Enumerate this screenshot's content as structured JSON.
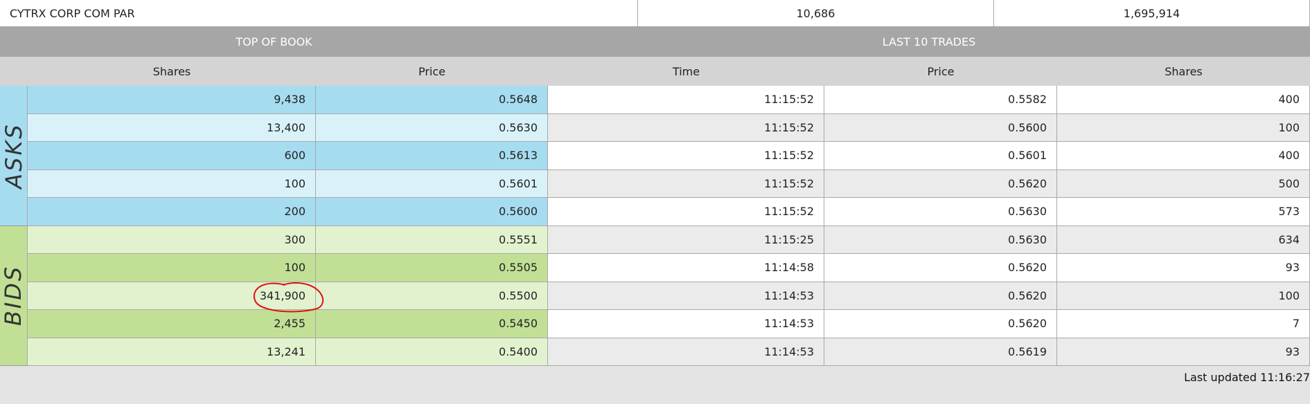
{
  "summary": [
    "CYTRX CORP COM PAR",
    "10,686",
    "1,695,914"
  ],
  "sections": [
    "TOP OF BOOK",
    "LAST 10 TRADES"
  ],
  "columns": [
    "Shares",
    "Price",
    "Time",
    "Price",
    "Shares"
  ],
  "side_labels": [
    "ASKS",
    "BIDS"
  ],
  "book": [
    [
      "9,438",
      "0.5648"
    ],
    [
      "13,400",
      "0.5630"
    ],
    [
      "600",
      "0.5613"
    ],
    [
      "100",
      "0.5601"
    ],
    [
      "200",
      "0.5600"
    ],
    [
      "300",
      "0.5551"
    ],
    [
      "100",
      "0.5505"
    ],
    [
      "341,900",
      "0.5500"
    ],
    [
      "2,455",
      "0.5450"
    ],
    [
      "13,241",
      "0.5400"
    ]
  ],
  "trades": [
    [
      "11:15:52",
      "0.5582",
      "400"
    ],
    [
      "11:15:52",
      "0.5600",
      "100"
    ],
    [
      "11:15:52",
      "0.5601",
      "400"
    ],
    [
      "11:15:52",
      "0.5620",
      "500"
    ],
    [
      "11:15:52",
      "0.5630",
      "573"
    ],
    [
      "11:15:25",
      "0.5630",
      "634"
    ],
    [
      "11:14:58",
      "0.5620",
      "93"
    ],
    [
      "11:14:53",
      "0.5620",
      "100"
    ],
    [
      "11:14:53",
      "0.5620",
      "7"
    ],
    [
      "11:14:53",
      "0.5619",
      "93"
    ]
  ],
  "footer": "Last updated 11:16:27"
}
